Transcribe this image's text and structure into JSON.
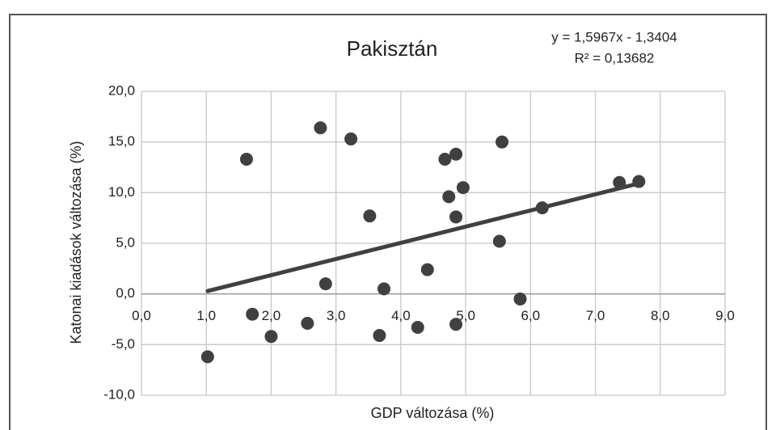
{
  "chart_data": {
    "type": "scatter",
    "title": "Pakisztán",
    "x_label": "GDP változása (%)",
    "y_label": "Katonai kiadások változása (%)",
    "trendline": {
      "equation": "y = 1,5967x - 1,3404",
      "r2": "R² = 0,13682",
      "slope": 1.5967,
      "intercept": -1.3404
    },
    "series": [
      {
        "name": "Pakisztán",
        "color": "#404040",
        "x": [
          1.62,
          1.71,
          2.0,
          2.56,
          2.76,
          2.84,
          3.23,
          3.52,
          3.67,
          3.74,
          4.26,
          4.41,
          4.68,
          4.74,
          4.85,
          4.85,
          4.85,
          4.96,
          5.52,
          5.56,
          5.84,
          6.18,
          7.37,
          7.67,
          1.02
        ],
        "values": [
          13.3,
          -2.0,
          -4.2,
          -2.9,
          16.4,
          1.0,
          15.3,
          7.7,
          -4.1,
          0.5,
          -3.3,
          2.4,
          13.3,
          9.6,
          13.8,
          7.6,
          -3.0,
          10.5,
          5.2,
          15.0,
          -0.5,
          8.5,
          11.0,
          11.1,
          -6.2
        ]
      }
    ],
    "xlim": [
      0,
      9
    ],
    "ylim": [
      -10,
      20
    ],
    "xticks": [
      {
        "value": 0,
        "label": "0,0"
      },
      {
        "value": 1,
        "label": "1,0"
      },
      {
        "value": 2,
        "label": "2,0"
      },
      {
        "value": 3,
        "label": "3,0"
      },
      {
        "value": 4,
        "label": "4,0"
      },
      {
        "value": 5,
        "label": "5,0"
      },
      {
        "value": 6,
        "label": "6,0"
      },
      {
        "value": 7,
        "label": "7,0"
      },
      {
        "value": 8,
        "label": "8,0"
      },
      {
        "value": 9,
        "label": "9,0"
      }
    ],
    "yticks": [
      {
        "value": -10,
        "label": "-10,0"
      },
      {
        "value": -5,
        "label": "-5,0"
      },
      {
        "value": 0,
        "label": "0,0"
      },
      {
        "value": 5,
        "label": "5,0"
      },
      {
        "value": 10,
        "label": "10,0"
      },
      {
        "value": 15,
        "label": "15,0"
      },
      {
        "value": 20,
        "label": "20,0"
      }
    ],
    "grid": true
  }
}
